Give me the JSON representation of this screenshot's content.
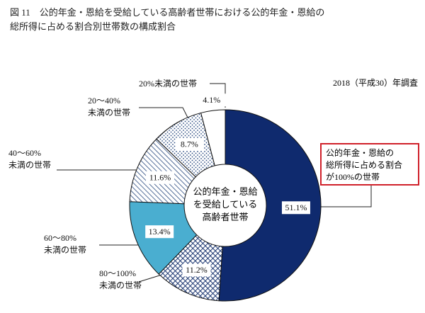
{
  "chart_data": {
    "type": "donut",
    "title": "図 11　公的年金・恩給を受給している高齢者世帯における公的年金・恩給の\n総所得に占める割合別世帯数の構成割合",
    "subtitle": "2018（平成30）年調査",
    "center_label": "公的年金・恩給\nを受給している\n高齢者世帯",
    "categories": [
      "公的年金・恩給の\n総所得に占める割合\nが100%の世帯",
      "80～100%\n未満の世帯",
      "60～80%\n未満の世帯",
      "40～60%\n未満の世帯",
      "20～40%\n未満の世帯",
      "20%未満の世帯"
    ],
    "values": [
      51.1,
      11.2,
      13.4,
      11.6,
      8.7,
      4.1
    ],
    "value_labels": [
      "51.1%",
      "11.2%",
      "13.4%",
      "11.6%",
      "8.7%",
      "4.1%"
    ],
    "colors": [
      "#0f2a6e",
      "#1a3570",
      "#4aaed0",
      "#2a4a80",
      "#2a4a80",
      "#ffffff"
    ],
    "patterns": [
      "solid",
      "crosshatch",
      "solid",
      "hatch",
      "dots",
      "solid"
    ]
  }
}
